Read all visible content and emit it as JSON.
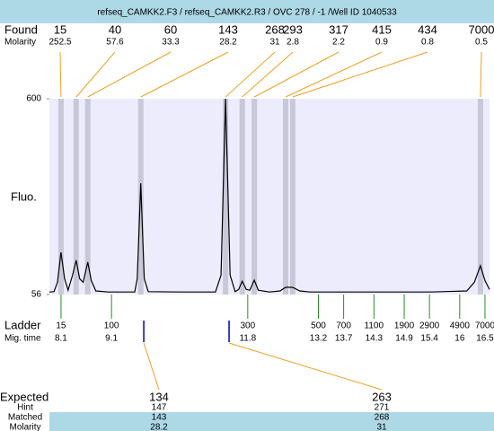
{
  "chart_data": {
    "type": "line",
    "title": "refseq_CAMKK2.F3 / refseq_CAMKK2.R3 / OVC 278 / -1 /Well ID 1040533",
    "ylabel": "Fluo.",
    "ylim": [
      56,
      600
    ],
    "yticks": [
      56,
      600
    ],
    "xlim": [
      7.87,
      16.59
    ],
    "color": "#000000",
    "x": [
      7.87,
      7.96,
      8.03,
      8.1,
      8.17,
      8.24,
      8.33,
      8.4,
      8.47,
      8.54,
      8.63,
      8.7,
      8.79,
      9.03,
      9.56,
      9.61,
      9.68,
      9.75,
      9.83,
      10.45,
      11.16,
      11.27,
      11.36,
      11.45,
      11.55,
      11.62,
      11.69,
      11.77,
      11.84,
      11.93,
      12.01,
      12.23,
      12.44,
      12.55,
      12.69,
      12.83,
      13.03,
      14.01,
      15.43,
      16.14,
      16.29,
      16.41,
      16.5,
      16.59
    ],
    "values": [
      63,
      64,
      90,
      173,
      100,
      68,
      110,
      151,
      100,
      90,
      146,
      95,
      66,
      63,
      63,
      100,
      365,
      100,
      64,
      63,
      63,
      110,
      600,
      110,
      64,
      70,
      93,
      70,
      68,
      96,
      68,
      63,
      66,
      76,
      76,
      66,
      63,
      63,
      63,
      66,
      90,
      136,
      95,
      70
    ],
    "found": {
      "label": "Found",
      "sizes": [
        15,
        40,
        60,
        143,
        268,
        293,
        317,
        415,
        434,
        7000
      ],
      "molarity_label": "Molarity",
      "molarity": [
        252.5,
        57.6,
        33.3,
        28.2,
        31,
        2.8,
        2.2,
        0.9,
        0.8,
        0.5
      ],
      "peak_times": [
        8.1,
        8.4,
        8.63,
        9.68,
        11.36,
        11.69,
        11.93,
        12.55,
        12.69,
        16.41
      ]
    },
    "ladder": {
      "label": "Ladder",
      "sizes": [
        15,
        100,
        300,
        500,
        700,
        1100,
        1900,
        2900,
        4900,
        7000
      ],
      "mig_label": "Mig. time",
      "mig_times": [
        8.1,
        9.1,
        11.8,
        13.2,
        13.7,
        14.3,
        14.9,
        15.4,
        16,
        16.5
      ]
    },
    "expected": {
      "label": "Expected",
      "sizes": [
        134,
        263
      ],
      "times": [
        9.74,
        11.43
      ],
      "hint_label": "Hint",
      "hint": [
        147,
        271
      ],
      "matched_label": "Matched",
      "matched": [
        143,
        268
      ],
      "molarity_label": "Molarity",
      "molarity": [
        28.2,
        31
      ]
    }
  }
}
